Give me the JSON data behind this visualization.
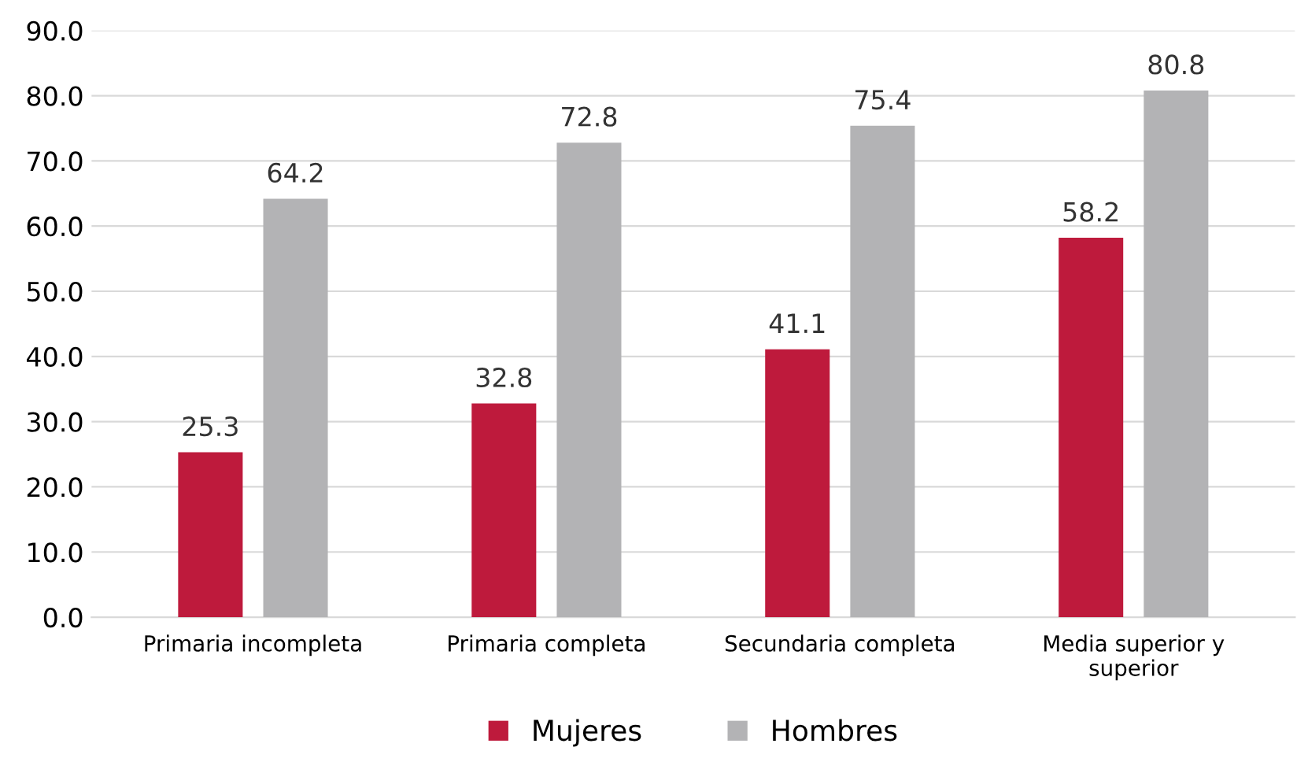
{
  "chart_data": {
    "type": "bar",
    "categories": [
      "Primaria incompleta",
      "Primaria completa",
      "Secundaria completa",
      "Media superior y\nsuperior"
    ],
    "series": [
      {
        "name": "Mujeres",
        "color": "#be1a3c",
        "values": [
          25.3,
          32.8,
          41.1,
          58.2
        ]
      },
      {
        "name": "Hombres",
        "color": "#b3b3b5",
        "values": [
          64.2,
          72.8,
          75.4,
          80.8
        ]
      }
    ],
    "ylim": [
      0,
      90
    ],
    "yticks": [
      {
        "value": 0,
        "label": "0.0"
      },
      {
        "value": 10,
        "label": "10.0"
      },
      {
        "value": 20,
        "label": "20.0"
      },
      {
        "value": 30,
        "label": "30.0"
      },
      {
        "value": 40,
        "label": "40.0"
      },
      {
        "value": 50,
        "label": "50.0"
      },
      {
        "value": 60,
        "label": "60.0"
      },
      {
        "value": 70,
        "label": "70.0"
      },
      {
        "value": 80,
        "label": "80.0"
      },
      {
        "value": 90,
        "label": "90.0"
      }
    ],
    "grid": "y",
    "legend": "bottom",
    "data_labels": true
  }
}
